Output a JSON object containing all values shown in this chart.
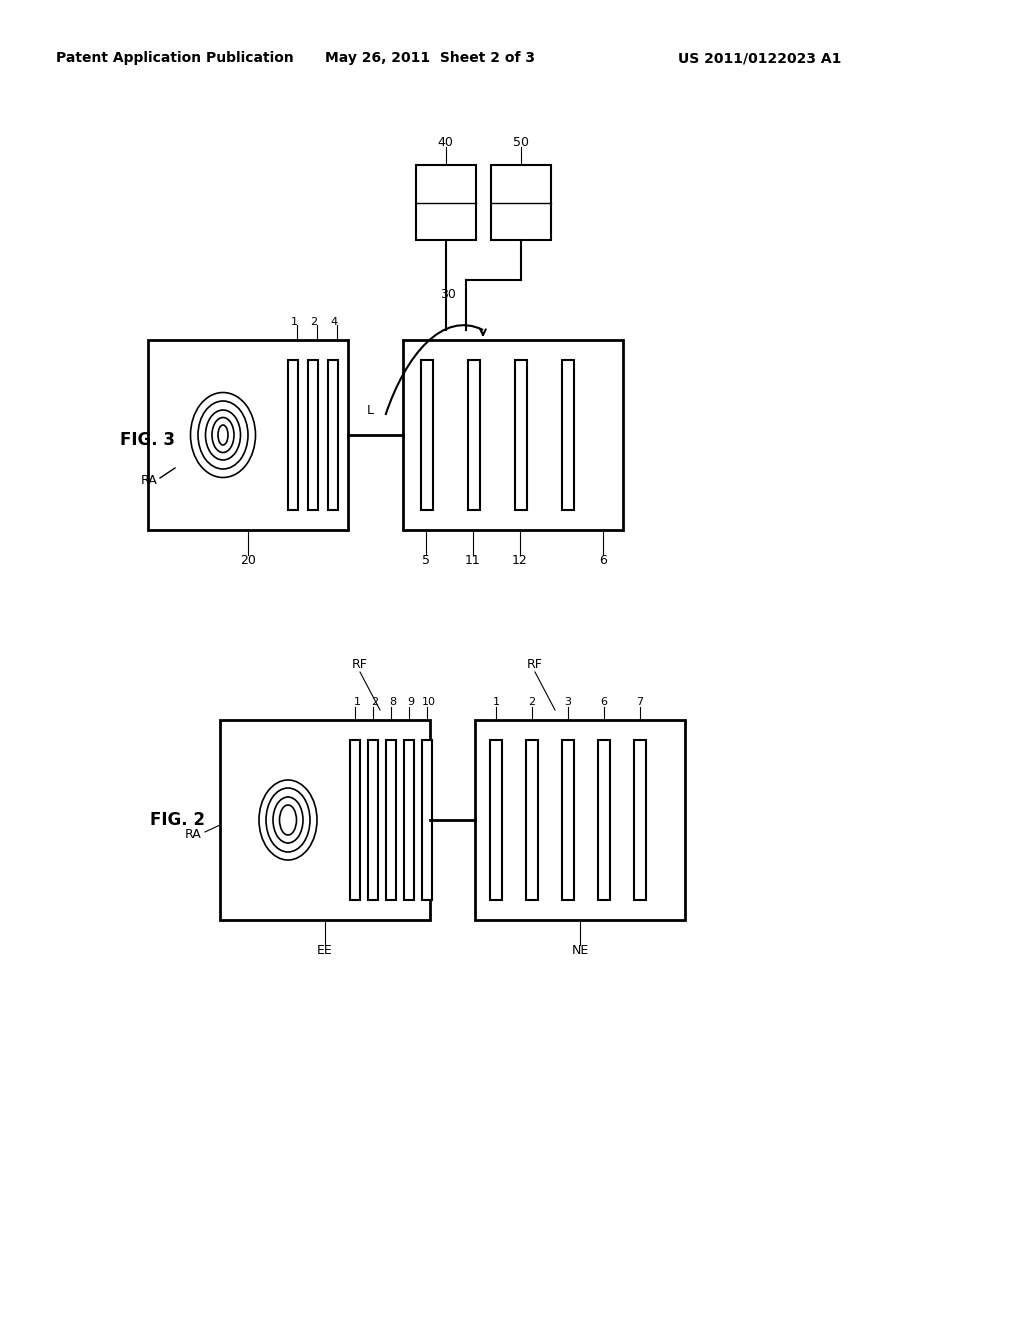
{
  "bg_color": "#ffffff",
  "header_text": "Patent Application Publication",
  "header_date": "May 26, 2011  Sheet 2 of 3",
  "header_patent": "US 2011/0122023 A1",
  "fig3_label": "FIG. 3",
  "fig2_label": "FIG. 2",
  "fig3_RA_label": "RA",
  "fig2_RA_label": "RA",
  "fig3_labels_top": [
    "1",
    "2",
    "4",
    "L",
    "30",
    "40",
    "50"
  ],
  "fig3_labels_bottom": [
    "20",
    "5",
    "11",
    "12",
    "6"
  ],
  "fig2_labels_top_left": [
    "RF",
    "1",
    "2",
    "8",
    "9",
    "10"
  ],
  "fig2_labels_top_right": [
    "RF",
    "1",
    "2",
    "3",
    "6",
    "7"
  ],
  "fig2_labels_bottom": [
    "EE",
    "NE"
  ]
}
